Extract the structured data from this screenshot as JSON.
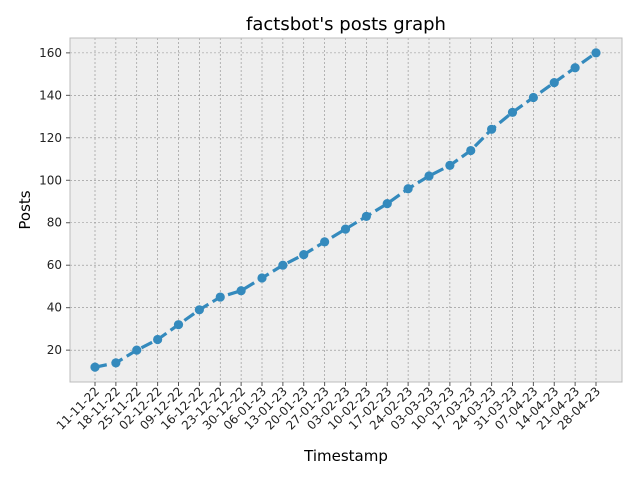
{
  "chart_data": {
    "type": "line",
    "title": "factsbot's posts graph",
    "xlabel": "Timestamp",
    "ylabel": "Posts",
    "categories": [
      "11-11-22",
      "18-11-22",
      "25-11-22",
      "02-12-22",
      "09-12-22",
      "16-12-22",
      "23-12-22",
      "30-12-22",
      "06-01-23",
      "13-01-23",
      "20-01-23",
      "27-01-23",
      "03-02-23",
      "10-02-23",
      "17-02-23",
      "24-02-23",
      "03-03-23",
      "10-03-23",
      "17-03-23",
      "24-03-23",
      "31-03-23",
      "07-04-23",
      "14-04-23",
      "21-04-23",
      "28-04-23"
    ],
    "values": [
      12,
      14,
      20,
      25,
      32,
      39,
      45,
      48,
      54,
      60,
      65,
      71,
      77,
      83,
      89,
      96,
      102,
      107,
      114,
      124,
      132,
      139,
      146,
      153,
      160
    ],
    "ylim": [
      5,
      167
    ],
    "yticks": [
      20,
      40,
      60,
      80,
      100,
      120,
      140,
      160
    ],
    "grid": true,
    "line_style": "dashed",
    "colors": {
      "line": "#348abd",
      "plot_bg": "#eeeeee",
      "grid": "#8c8c8c",
      "frame": "#bcbcbc"
    }
  }
}
